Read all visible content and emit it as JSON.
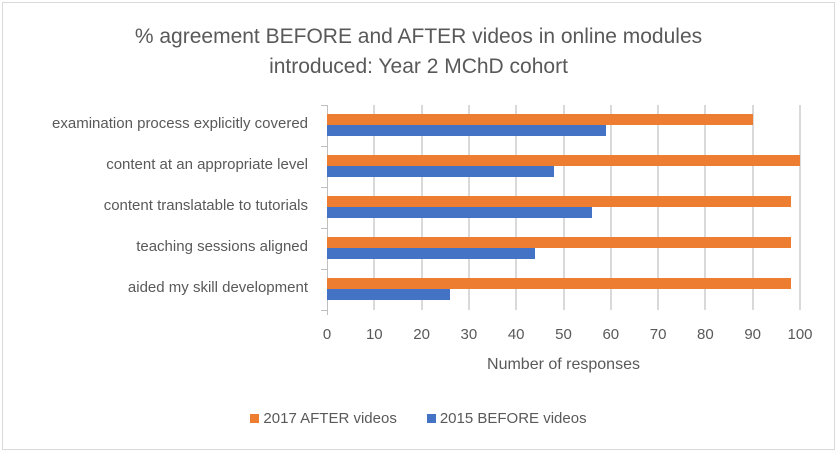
{
  "chart_data": {
    "type": "bar",
    "orientation": "horizontal",
    "title": "% agreement BEFORE and AFTER videos in online modules introduced: Year 2 MChD cohort",
    "title_lines": [
      "% agreement BEFORE and AFTER videos in online modules",
      "introduced: Year 2 MChD cohort"
    ],
    "categories": [
      "examination process explicitly covered",
      "content at an appropriate level",
      "content translatable to tutorials",
      "teaching sessions aligned",
      "aided my skill development"
    ],
    "series": [
      {
        "name": "2017 AFTER videos",
        "color": "#ed7d31",
        "values": [
          90,
          100,
          98,
          98,
          98
        ]
      },
      {
        "name": "2015 BEFORE videos",
        "color": "#4472c4",
        "values": [
          59,
          48,
          56,
          44,
          26
        ]
      }
    ],
    "xlabel": "Number of responses",
    "ylabel": "",
    "xlim": [
      0,
      100
    ],
    "xticks": [
      "0",
      "10",
      "20",
      "30",
      "40",
      "50",
      "60",
      "70",
      "80",
      "90",
      "100"
    ],
    "grid": true,
    "legend_position": "bottom"
  }
}
